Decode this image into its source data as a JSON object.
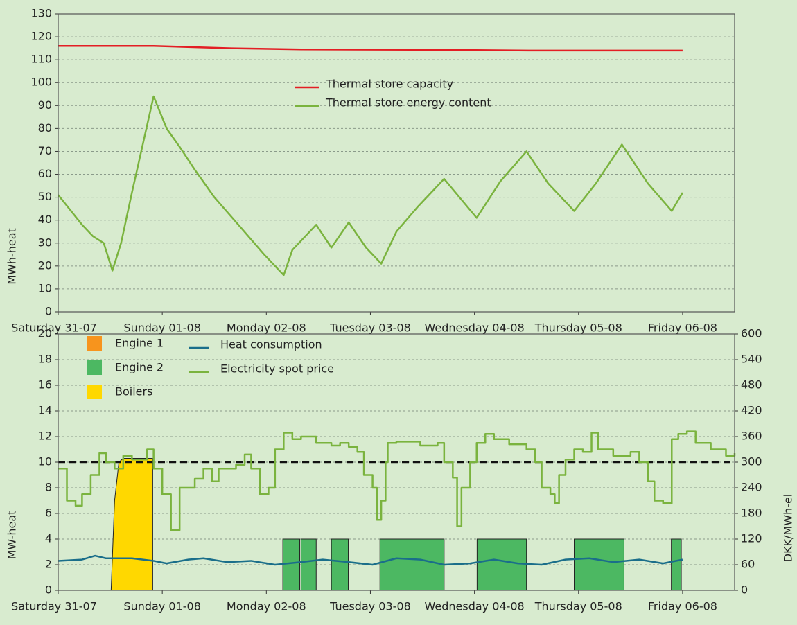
{
  "chart_data": [
    {
      "type": "line",
      "ylabel": "MWh-heat",
      "xlim": [
        0,
        156
      ],
      "ylim": [
        0,
        130
      ],
      "xticks": [
        {
          "value": 0,
          "label": "Saturday 31-07"
        },
        {
          "value": 24,
          "label": "Sunday 01-08"
        },
        {
          "value": 48,
          "label": "Monday 02-08"
        },
        {
          "value": 72,
          "label": "Tuesday 03-08"
        },
        {
          "value": 96,
          "label": "Wednesday 04-08"
        },
        {
          "value": 120,
          "label": "Thursday 05-08"
        },
        {
          "value": 144,
          "label": "Friday 06-08"
        }
      ],
      "yticks": [
        0,
        10,
        20,
        30,
        40,
        50,
        60,
        70,
        80,
        90,
        100,
        110,
        120,
        130
      ],
      "grid": true,
      "legend": "upper center",
      "series": [
        {
          "name": "Thermal store capacity",
          "color": "#e31e24",
          "x": [
            0,
            22,
            40,
            56,
            89,
            110,
            144
          ],
          "values": [
            116,
            116,
            115,
            114.5,
            114.3,
            114,
            114
          ]
        },
        {
          "name": "Thermal store energy content",
          "color": "#7ab33e",
          "x": [
            0,
            5.5,
            8,
            10.5,
            11.5,
            12.5,
            14.5,
            17,
            22,
            25,
            28,
            31.5,
            36,
            42,
            47.5,
            52,
            54,
            59.5,
            63,
            67,
            71,
            74.5,
            78,
            83,
            89,
            96.5,
            102,
            108,
            113,
            119,
            124,
            130,
            136,
            141.5,
            144
          ],
          "values": [
            51,
            38,
            33,
            30,
            24,
            18,
            30,
            52,
            94,
            80,
            72,
            62,
            50,
            37,
            25,
            16,
            27,
            38,
            28,
            39,
            28,
            21,
            35,
            46,
            58,
            41,
            57,
            70,
            56,
            44,
            56,
            73,
            56,
            44,
            52
          ]
        }
      ]
    },
    {
      "type": "combo",
      "ylabel": "MW-heat",
      "y2label": "DKK/MWh-el",
      "xlim": [
        0,
        156
      ],
      "ylim": [
        0,
        20
      ],
      "y2lim": [
        0,
        600
      ],
      "xticks": [
        {
          "value": 0,
          "label": "Saturday 31-07"
        },
        {
          "value": 24,
          "label": "Sunday 01-08"
        },
        {
          "value": 48,
          "label": "Monday 02-08"
        },
        {
          "value": 72,
          "label": "Tuesday 03-08"
        },
        {
          "value": 96,
          "label": "Wednesday 04-08"
        },
        {
          "value": 120,
          "label": "Thursday 05-08"
        },
        {
          "value": 144,
          "label": "Friday 06-08"
        }
      ],
      "yticks": [
        0,
        2,
        4,
        6,
        8,
        10,
        12,
        14,
        16,
        18,
        20
      ],
      "y2ticks": [
        0,
        60,
        120,
        180,
        240,
        300,
        360,
        420,
        480,
        540,
        600
      ],
      "grid": true,
      "legend": "upper left",
      "hline": 10,
      "series": [
        {
          "name": "Engine 1",
          "kind": "area",
          "color": "#f7941d",
          "x": [
            0,
            156
          ],
          "values": [
            0,
            0
          ]
        },
        {
          "name": "Engine 2",
          "kind": "area",
          "color": "#4cb862",
          "x": [
            51.8,
            51.8,
            55.7,
            55.7,
            56,
            56,
            59.5,
            59.5,
            63,
            63,
            66.9,
            66.9,
            74.2,
            74.2,
            89,
            89,
            96.6,
            96.6,
            108,
            108,
            119,
            119,
            130.5,
            130.5,
            141.4,
            141.4,
            143.7,
            143.7
          ],
          "values": [
            0,
            4,
            4,
            0,
            0,
            4,
            4,
            0,
            0,
            4,
            4,
            0,
            0,
            4,
            4,
            0,
            0,
            4,
            4,
            0,
            0,
            4,
            4,
            0,
            0,
            4,
            4,
            0
          ]
        },
        {
          "name": "Boilers",
          "kind": "area",
          "color": "#ffd800",
          "x": [
            12.2,
            13,
            14,
            15,
            21.8,
            21.8
          ],
          "values": [
            0,
            7,
            10,
            10.3,
            10.3,
            0
          ]
        },
        {
          "name": "Heat consumption",
          "kind": "line",
          "color": "#1a6e8a",
          "x": [
            0,
            5.5,
            8.5,
            11,
            17,
            22,
            25,
            30,
            33.5,
            39,
            44.5,
            50,
            56,
            61,
            67,
            72.5,
            78,
            83.5,
            89,
            95,
            100.5,
            106,
            111.5,
            117,
            122.5,
            128,
            134,
            139.5,
            144
          ],
          "values": [
            2.3,
            2.4,
            2.7,
            2.5,
            2.5,
            2.3,
            2.1,
            2.4,
            2.5,
            2.2,
            2.3,
            2.0,
            2.2,
            2.4,
            2.2,
            2.0,
            2.5,
            2.4,
            2.0,
            2.1,
            2.4,
            2.1,
            2.0,
            2.4,
            2.5,
            2.2,
            2.4,
            2.1,
            2.4
          ]
        },
        {
          "name": "Electricity spot price",
          "kind": "line",
          "step": true,
          "axis": "y2",
          "color": "#7ab33e",
          "x": [
            0,
            2,
            4,
            5.5,
            7.5,
            9.5,
            11,
            13,
            15,
            17,
            20.5,
            22,
            24,
            26,
            28,
            31.5,
            33.5,
            35.5,
            37,
            41,
            43,
            44.5,
            46.5,
            48.5,
            50,
            52,
            54,
            56,
            59.5,
            63,
            65,
            67,
            69,
            70.5,
            72.5,
            73.5,
            74.5,
            75.5,
            76,
            78,
            83.5,
            87.5,
            89,
            91,
            92,
            93,
            95,
            96.5,
            98.5,
            100.5,
            104,
            108,
            110,
            111.5,
            113.5,
            114.5,
            115.5,
            117,
            119,
            121,
            123,
            124.5,
            128,
            132,
            134,
            136,
            137.5,
            139.5,
            141.5,
            143,
            145,
            147,
            150.5,
            154,
            156
          ],
          "values": [
            285,
            210,
            198,
            225,
            270,
            321,
            300,
            285,
            315,
            306,
            330,
            285,
            225,
            141,
            240,
            261,
            285,
            255,
            285,
            294,
            318,
            285,
            225,
            240,
            330,
            369,
            354,
            360,
            345,
            339,
            345,
            336,
            324,
            270,
            240,
            165,
            210,
            300,
            345,
            348,
            339,
            345,
            300,
            264,
            150,
            240,
            300,
            345,
            366,
            354,
            342,
            330,
            300,
            240,
            225,
            204,
            270,
            306,
            330,
            324,
            369,
            330,
            315,
            324,
            300,
            255,
            210,
            204,
            354,
            366,
            372,
            345,
            330,
            315,
            321
          ]
        }
      ]
    }
  ]
}
